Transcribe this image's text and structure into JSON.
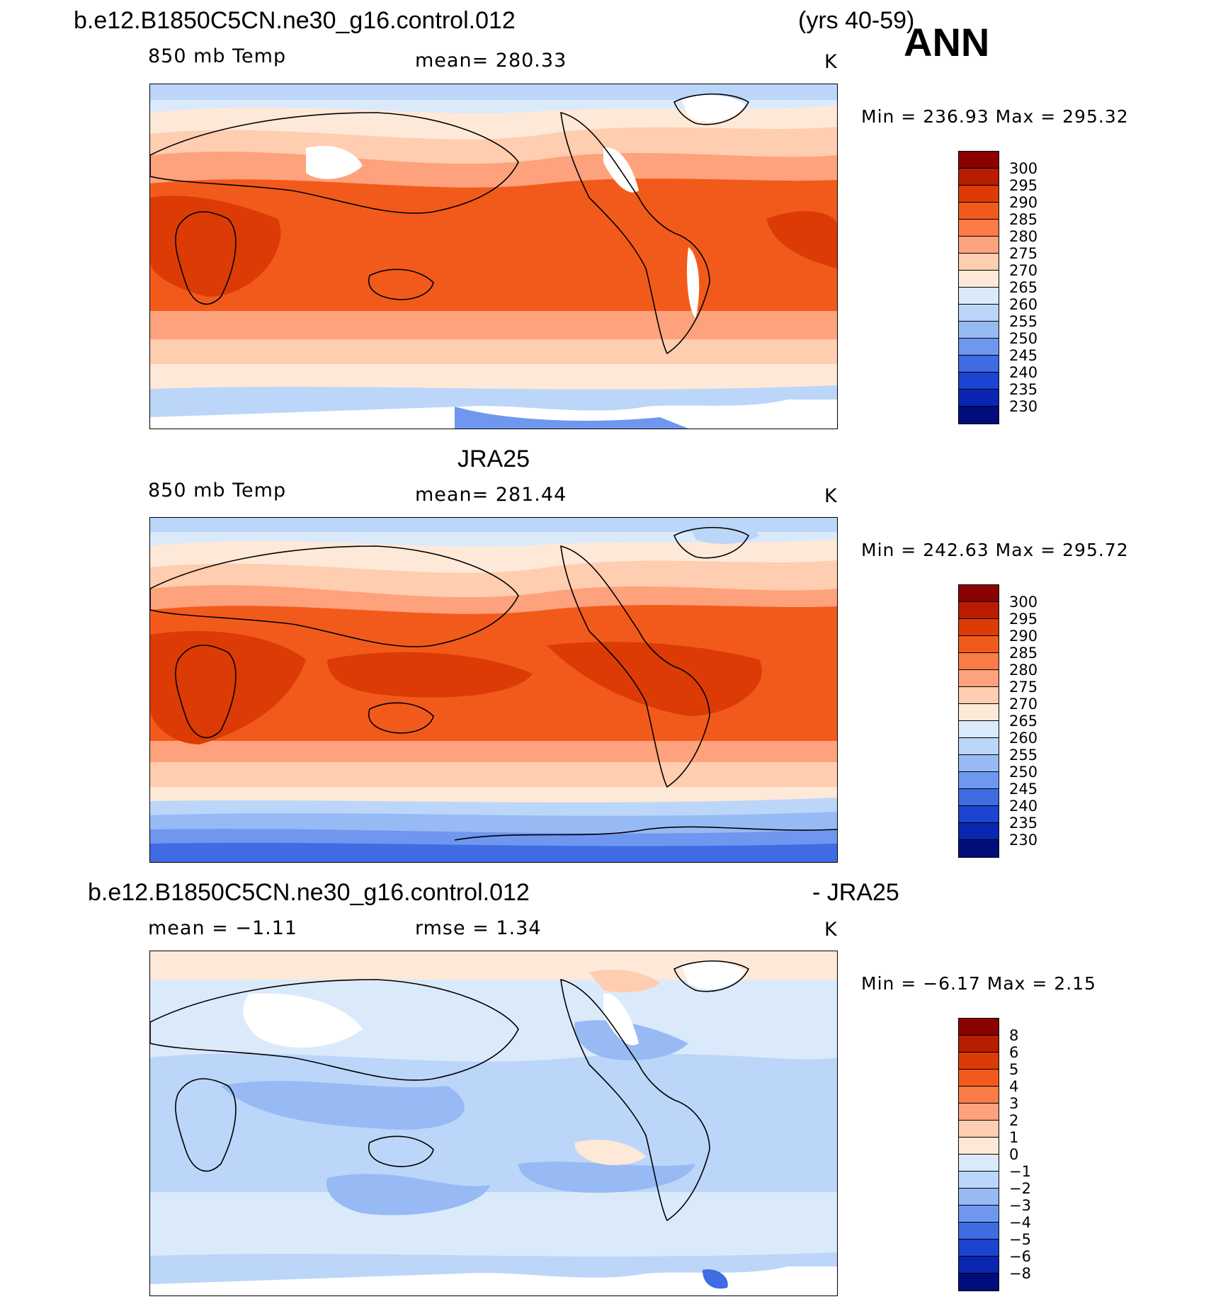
{
  "header": {
    "case_name": "b.e12.B1850C5CN.ne30_g16.control.012",
    "years": "(yrs 40-59)",
    "season": "ANN"
  },
  "panels": [
    {
      "title": "",
      "field": "850 mb Temp",
      "stat": "mean=  280.33",
      "units": "K",
      "minmax": "Min  =  236.93  Max  =  295.32",
      "colorbar_labels": [
        "300",
        "295",
        "290",
        "285",
        "280",
        "275",
        "270",
        "265",
        "260",
        "255",
        "250",
        "245",
        "240",
        "235",
        "230"
      ]
    },
    {
      "title": "JRA25",
      "field": "850 mb Temp",
      "stat": "mean=  281.44",
      "units": "K",
      "minmax": "Min  =  242.63  Max  =  295.72",
      "colorbar_labels": [
        "300",
        "295",
        "290",
        "285",
        "280",
        "275",
        "270",
        "265",
        "260",
        "255",
        "250",
        "245",
        "240",
        "235",
        "230"
      ]
    },
    {
      "title": "b.e12.B1850C5CN.ne30_g16.control.012",
      "title_right": "- JRA25",
      "field": "mean  =    −1.11",
      "stat": "rmse  =     1.34",
      "units": "K",
      "minmax": "Min  =   −6.17  Max  =     2.15",
      "colorbar_labels": [
        "8",
        "6",
        "5",
        "4",
        "3",
        "2",
        "1",
        "0",
        "−1",
        "−2",
        "−3",
        "−4",
        "−5",
        "−6",
        "−8"
      ]
    }
  ],
  "colors": {
    "temp_scale": [
      "#8b0000",
      "#b81d00",
      "#dc3b06",
      "#f25a1c",
      "#fb7b46",
      "#fda27c",
      "#ffcdb0",
      "#fee9d8",
      "#dbeafb",
      "#bcd6f9",
      "#97baf5",
      "#6f97ef",
      "#3f6be3",
      "#1b44d0",
      "#0a26b0",
      "#000d7a"
    ],
    "diff_scale": [
      "#8b0000",
      "#b81d00",
      "#dc3b06",
      "#f25a1c",
      "#fb7b46",
      "#fda27c",
      "#ffcdb0",
      "#fee9d8",
      "#dbeafb",
      "#bcd6f9",
      "#97baf5",
      "#6f97ef",
      "#3f6be3",
      "#1b44d0",
      "#0a26b0",
      "#000d7a"
    ]
  }
}
